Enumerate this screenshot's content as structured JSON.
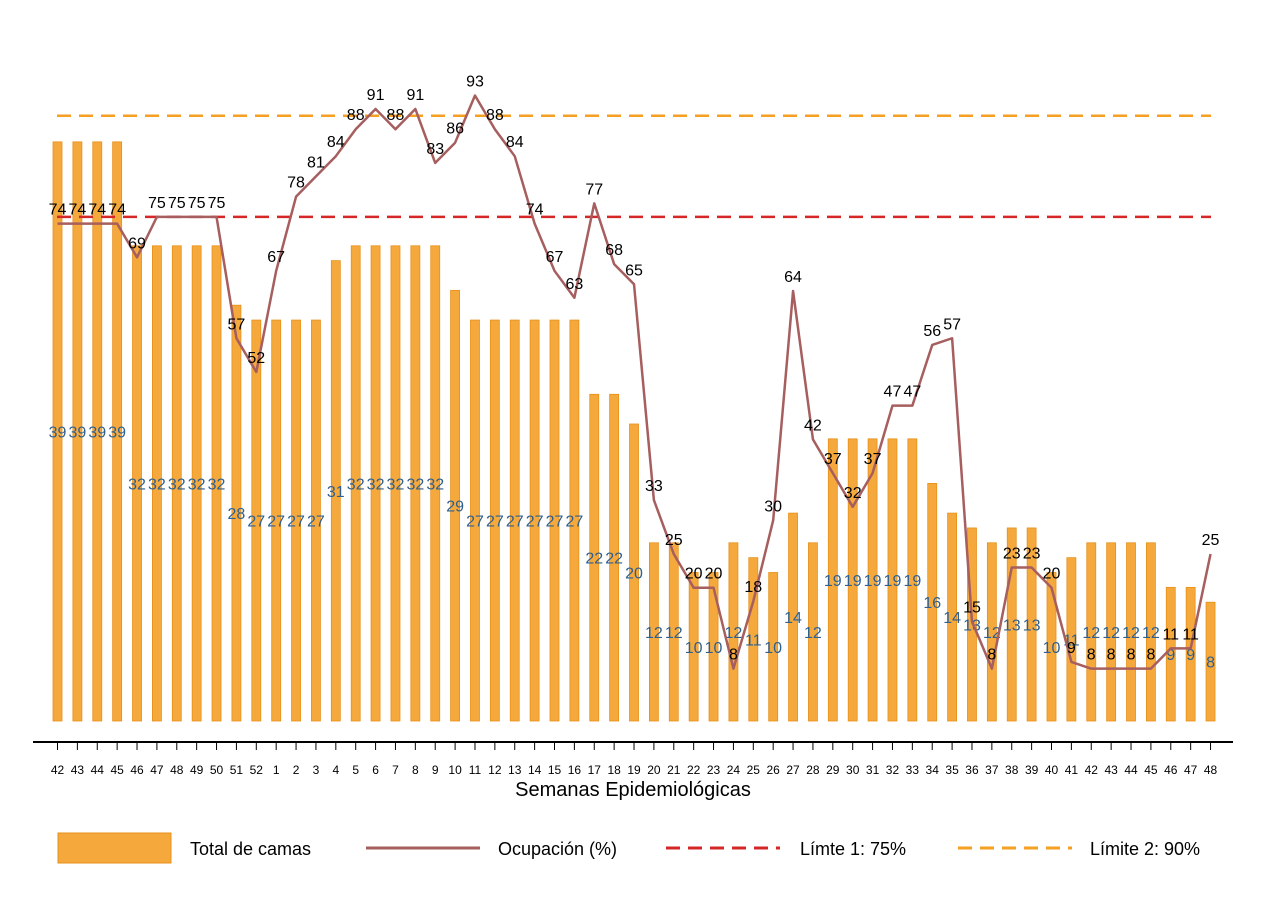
{
  "chart_data": {
    "type": "bar",
    "xlabel": "Semanas Epidemiológicas",
    "categories": [
      "42",
      "43",
      "44",
      "45",
      "46",
      "47",
      "48",
      "49",
      "50",
      "51",
      "52",
      "1",
      "2",
      "3",
      "4",
      "5",
      "6",
      "7",
      "8",
      "9",
      "10",
      "11",
      "12",
      "13",
      "14",
      "15",
      "16",
      "17",
      "18",
      "19",
      "20",
      "21",
      "22",
      "23",
      "24",
      "25",
      "26",
      "27",
      "28",
      "29",
      "30",
      "31",
      "32",
      "33",
      "34",
      "35",
      "36",
      "37",
      "38",
      "39",
      "40",
      "41",
      "42",
      "43",
      "44",
      "45",
      "46",
      "47",
      "48"
    ],
    "series": [
      {
        "name": "Total de camas",
        "type": "bar",
        "color": "#f5a93c",
        "values": [
          39,
          39,
          39,
          39,
          32,
          32,
          32,
          32,
          32,
          28,
          27,
          27,
          27,
          27,
          31,
          32,
          32,
          32,
          32,
          32,
          29,
          27,
          27,
          27,
          27,
          27,
          27,
          22,
          22,
          20,
          12,
          12,
          10,
          10,
          12,
          11,
          10,
          14,
          12,
          19,
          19,
          19,
          19,
          19,
          16,
          14,
          13,
          12,
          13,
          13,
          10,
          11,
          12,
          12,
          12,
          12,
          9,
          9,
          8
        ],
        "labels": [
          "39",
          "39",
          "39",
          "39",
          "32",
          "32",
          "32",
          "32",
          "32",
          "28",
          "27",
          "27",
          "27",
          "27",
          "31",
          "32",
          "32",
          "32",
          "32",
          "32",
          "29",
          "27",
          "27",
          "27",
          "27",
          "27",
          "27",
          "22",
          "22",
          "20",
          "12",
          "12",
          "10",
          "10",
          "12",
          "11",
          "10",
          "14",
          "12",
          "19",
          "19",
          "19",
          "19",
          "19",
          "16",
          "14",
          "13",
          "12",
          "13",
          "13",
          "10",
          "11",
          "12",
          "12",
          "12",
          "12",
          "9",
          "9",
          "8"
        ]
      },
      {
        "name": "Ocupación (%)",
        "type": "line",
        "color": "#a65e5e",
        "values": [
          74,
          74,
          74,
          74,
          69,
          75,
          75,
          75,
          75,
          57,
          52,
          67,
          78,
          81,
          84,
          88,
          91,
          88,
          91,
          83,
          86,
          93,
          88,
          84,
          74,
          67,
          63,
          77,
          68,
          65,
          33,
          25,
          20,
          20,
          8,
          18,
          30,
          64,
          42,
          37,
          32,
          37,
          47,
          47,
          56,
          57,
          15,
          8,
          23,
          23,
          20,
          9,
          8,
          8,
          8,
          8,
          11,
          11,
          25
        ],
        "labels": [
          "74",
          "74",
          "74",
          "74",
          "69",
          "75",
          "75",
          "75",
          "75",
          "57",
          "52",
          "67",
          "78",
          "81",
          "84",
          "88",
          "91",
          "88",
          "91",
          "83",
          "86",
          "93",
          "88",
          "84",
          "74",
          "67",
          "63",
          "77",
          "68",
          "65",
          "33",
          "25",
          "20",
          "20",
          "8",
          "18",
          "30",
          "64",
          "42",
          "37",
          "32",
          "37",
          "47",
          "47",
          "56",
          "57",
          "15",
          "8",
          "23",
          "23",
          "20",
          "9",
          "8",
          "8",
          "8",
          "8",
          "11",
          "11",
          "25"
        ]
      }
    ],
    "thresholds": [
      {
        "name": "Límte 1: 75%",
        "value": 75,
        "color": "#d62728"
      },
      {
        "name": "Límite 2: 90%",
        "value": 90,
        "color": "#f5a023"
      }
    ],
    "grid": false,
    "legend_position": "bottom"
  },
  "legend": [
    {
      "key": "bar",
      "label": "Total de camas"
    },
    {
      "key": "line",
      "label": "Ocupación (%)"
    },
    {
      "key": "limit1",
      "label": "Límte 1: 75%"
    },
    {
      "key": "limit2",
      "label": "Límite 2: 90%"
    }
  ]
}
